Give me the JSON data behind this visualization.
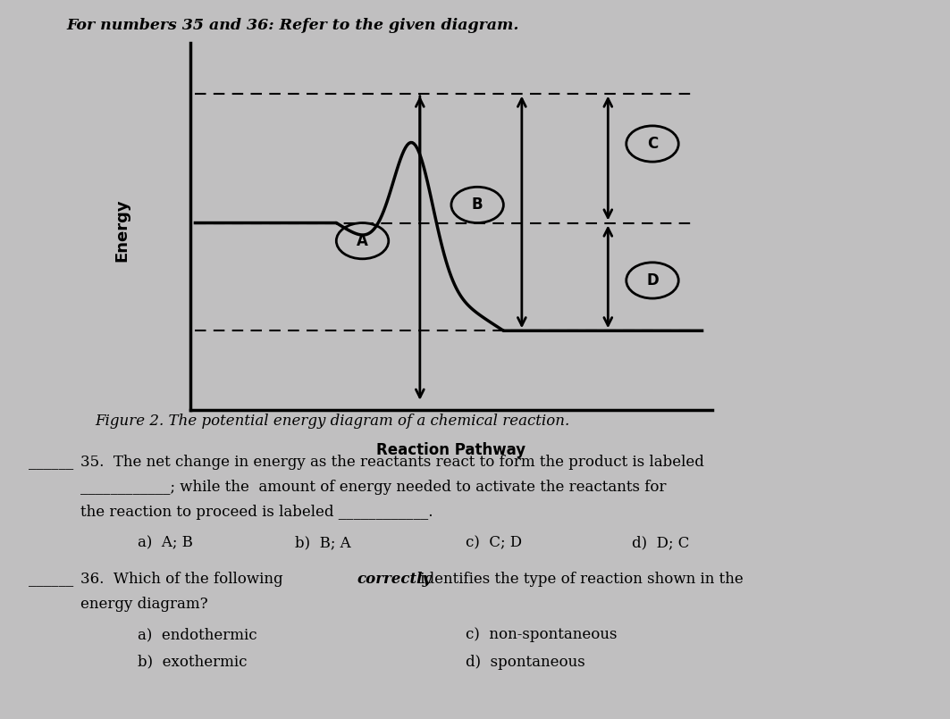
{
  "bg_color": "#c0bfc0",
  "header_text": "For numbers 35 and 36: Refer to the given diagram.",
  "figure_caption": "Figure 2. The potential energy diagram of a chemical reaction.",
  "diagram": {
    "reactant_level": 0.52,
    "product_level": 0.22,
    "peak_level": 0.88,
    "xlabel": "Reaction Pathway",
    "ylabel": "Energy"
  },
  "q35_line1": "35.  The net change in energy as the reactants react to form the product is labeled",
  "q35_line2": "____________; while the  amount of energy needed to activate the reactants for",
  "q35_line3": "the reaction to proceed is labeled ____________.",
  "q35_opt_a": "a)  A; B",
  "q35_opt_b": "b)  B; A",
  "q35_opt_c": "c)  C; D",
  "q35_opt_d": "d)  D; C",
  "q36_line1a": "36.  Which of the following ",
  "q36_line1b": "correctly",
  "q36_line1c": " identifies the type of reaction shown in the",
  "q36_line2": "energy diagram?",
  "q36_opt_a": "a)  endothermic",
  "q36_opt_b": "b)  exothermic",
  "q36_opt_c": "c)  non-spontaneous",
  "q36_opt_d": "d)  spontaneous"
}
